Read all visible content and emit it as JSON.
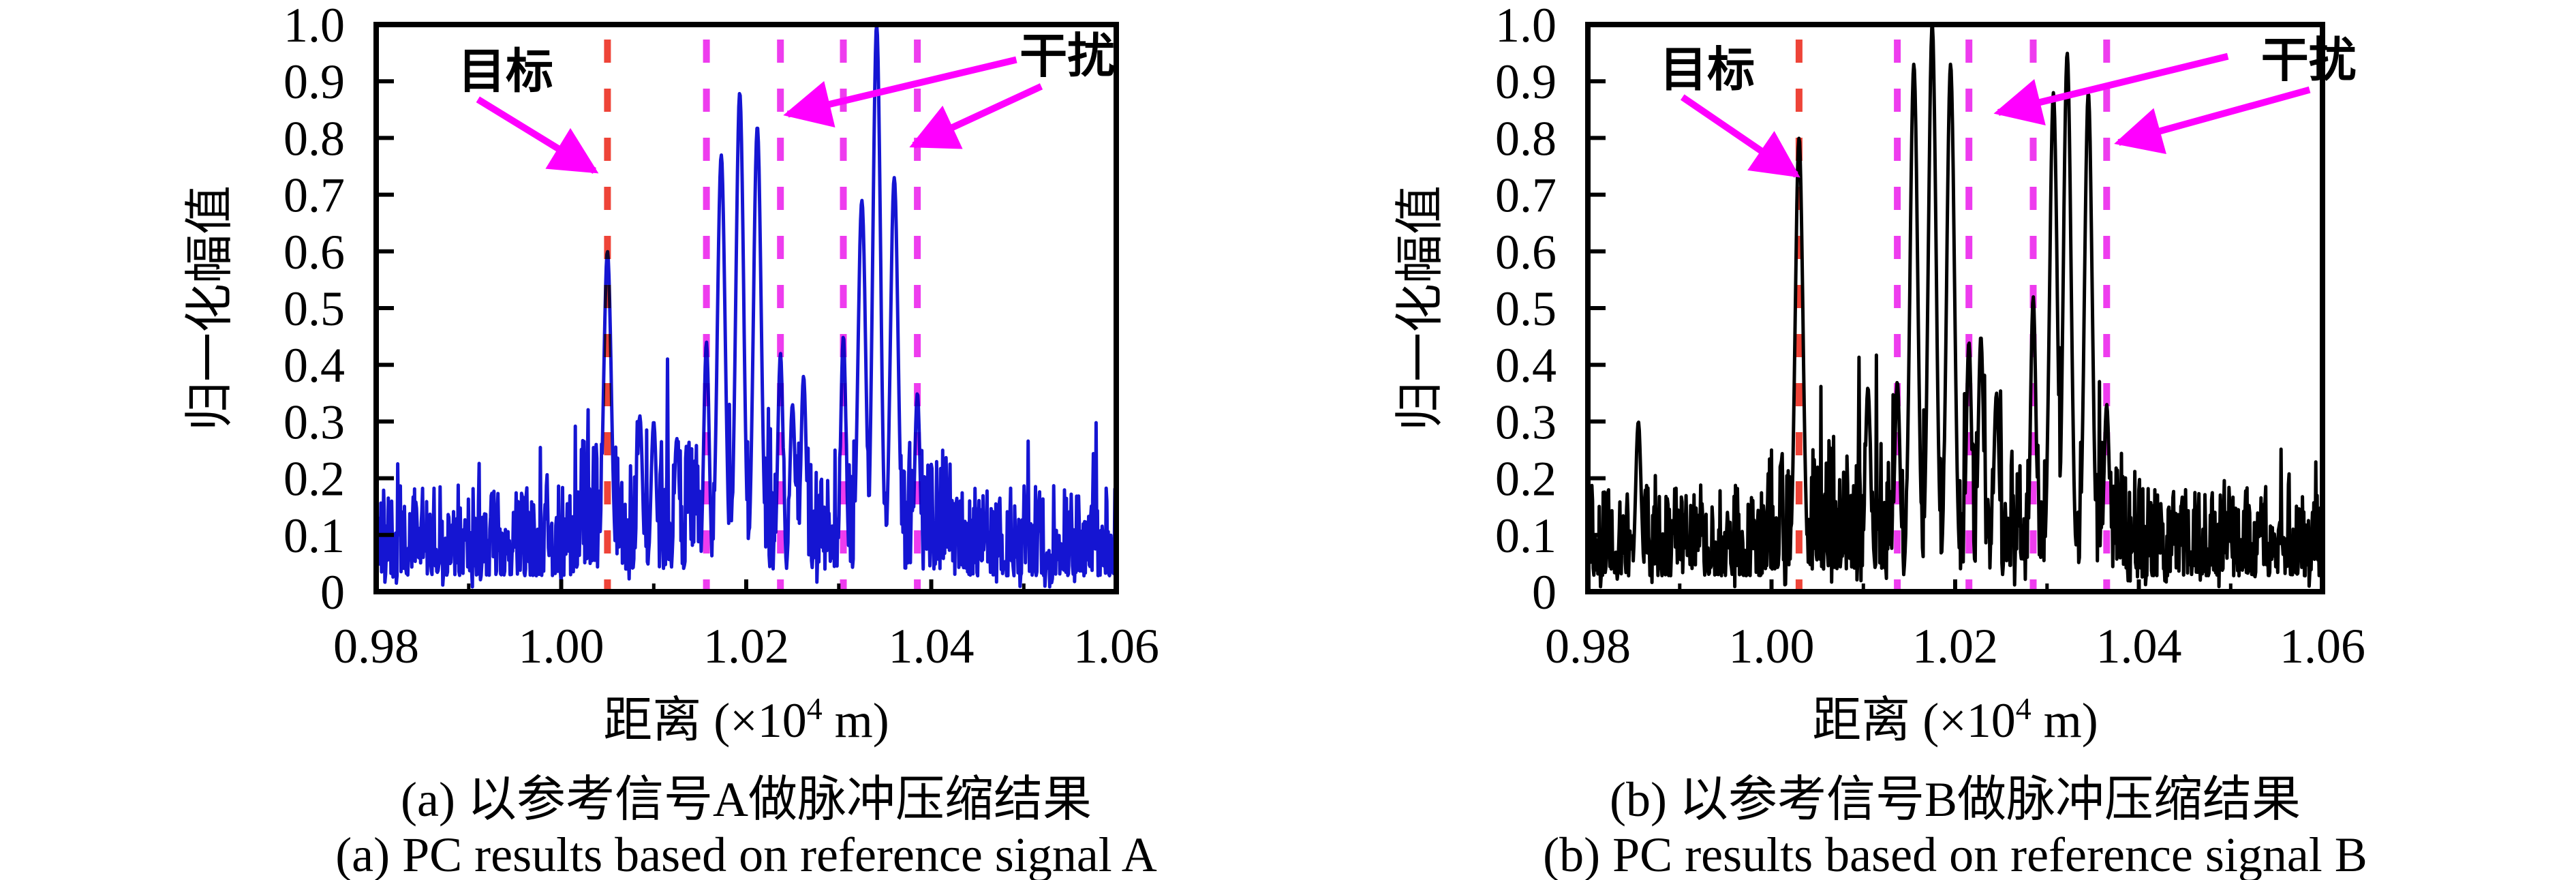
{
  "figure": {
    "background": "#ffffff",
    "panels": [
      {
        "id": "a",
        "ylabel": "归一化幅值",
        "xlabel_prefix": "距离 (×10",
        "xlabel_sup": "4",
        "xlabel_suffix": " m)",
        "caption_zh": "(a) 以参考信号A做脉冲压缩结果",
        "caption_en": "(a) PC results based on reference signal A"
      },
      {
        "id": "b",
        "ylabel": "归一化幅值",
        "xlabel_prefix": "距离 (×10",
        "xlabel_sup": "4",
        "xlabel_suffix": " m)",
        "caption_zh": "(b) 以参考信号B做脉冲压缩结果",
        "caption_en": "(b) PC results based on reference signal B"
      }
    ]
  },
  "chart_data": [
    {
      "type": "line",
      "title": "(a) 以参考信号A做脉冲压缩结果 / PC results based on reference signal A",
      "xlabel": "距离 (×10⁴ m)",
      "ylabel": "归一化幅值",
      "xlim": [
        0.98,
        1.06
      ],
      "ylim": [
        0,
        1.0
      ],
      "grid": false,
      "legend": "none",
      "x_ticks": [
        0.98,
        1.0,
        1.02,
        1.04,
        1.06
      ],
      "x_tick_labels": [
        "0.98",
        "1.00",
        "1.02",
        "1.04",
        "1.06"
      ],
      "x_minor_ticks": [
        0.99,
        1.01,
        1.03,
        1.05
      ],
      "y_ticks": [
        0,
        0.1,
        0.2,
        0.3,
        0.4,
        0.5,
        0.6,
        0.7,
        0.8,
        0.9,
        1.0
      ],
      "y_tick_labels": [
        "0",
        "0.1",
        "0.2",
        "0.3",
        "0.4",
        "0.5",
        "0.6",
        "0.7",
        "0.8",
        "0.9",
        "1.0"
      ],
      "line_color": "#1515d2",
      "target_line": {
        "x": 1.005,
        "color": "#ee4438",
        "style": "dashed",
        "label": "目标"
      },
      "interference_lines": {
        "x": [
          1.0157,
          1.0237,
          1.0305,
          1.0385
        ],
        "color": "#ee3cee",
        "style": "dashed",
        "label": "干扰"
      },
      "main_peaks": [
        [
          1.005,
          0.6
        ],
        [
          1.0085,
          0.31
        ],
        [
          1.01,
          0.3
        ],
        [
          1.0125,
          0.27
        ],
        [
          1.0157,
          0.44
        ],
        [
          1.0173,
          0.77
        ],
        [
          1.0193,
          0.88
        ],
        [
          1.0212,
          0.82
        ],
        [
          1.0237,
          0.42
        ],
        [
          1.025,
          0.33
        ],
        [
          1.0262,
          0.38
        ],
        [
          1.0305,
          0.45
        ],
        [
          1.0325,
          0.69
        ],
        [
          1.0341,
          1.0
        ],
        [
          1.036,
          0.73
        ],
        [
          1.0385,
          0.35
        ]
      ],
      "noise_floor": {
        "min": 0.01,
        "typical": 0.12,
        "max": 0.3
      },
      "noise_seed": 7,
      "annotations": {
        "target": {
          "label": "目标",
          "color": "#ff00ff",
          "text_pos": [
            0.994,
            0.92
          ],
          "arrows": [
            [
              [
                0.991,
                0.868
              ],
              [
                1.0036,
                0.742
              ]
            ]
          ]
        },
        "interference": {
          "label": "干扰",
          "color": "#ff00ff",
          "text_pos": [
            1.0547,
            0.947
          ],
          "arrows": [
            [
              [
                1.0492,
                0.938
              ],
              [
                1.0245,
                0.842
              ]
            ],
            [
              [
                1.0519,
                0.891
              ],
              [
                1.0381,
                0.787
              ]
            ]
          ]
        }
      }
    },
    {
      "type": "line",
      "title": "(b) 以参考信号B做脉冲压缩结果 / PC results based on reference signal B",
      "xlabel": "距离 (×10⁴ m)",
      "ylabel": "归一化幅值",
      "xlim": [
        0.98,
        1.06
      ],
      "ylim": [
        0,
        1.0
      ],
      "grid": false,
      "legend": "none",
      "x_ticks": [
        0.98,
        1.0,
        1.02,
        1.04,
        1.06
      ],
      "x_tick_labels": [
        "0.98",
        "1.00",
        "1.02",
        "1.04",
        "1.06"
      ],
      "x_minor_ticks": [
        0.99,
        1.01,
        1.03,
        1.05
      ],
      "y_ticks": [
        0,
        0.1,
        0.2,
        0.3,
        0.4,
        0.5,
        0.6,
        0.7,
        0.8,
        0.9,
        1.0
      ],
      "y_tick_labels": [
        "0",
        "0.1",
        "0.2",
        "0.3",
        "0.4",
        "0.5",
        "0.6",
        "0.7",
        "0.8",
        "0.9",
        "1.0"
      ],
      "line_color": "#000000",
      "target_line": {
        "x": 1.003,
        "color": "#ee4438",
        "style": "dashed",
        "label": "目标"
      },
      "interference_lines": {
        "x": [
          1.0137,
          1.0215,
          1.0285,
          1.0365
        ],
        "color": "#ee3cee",
        "style": "dashed",
        "label": "干扰"
      },
      "main_peaks": [
        [
          0.9855,
          0.3
        ],
        [
          1.003,
          0.8
        ],
        [
          1.0105,
          0.36
        ],
        [
          1.0137,
          0.37
        ],
        [
          1.0155,
          0.93
        ],
        [
          1.0175,
          1.0
        ],
        [
          1.0195,
          0.93
        ],
        [
          1.0215,
          0.44
        ],
        [
          1.0228,
          0.45
        ],
        [
          1.0245,
          0.35
        ],
        [
          1.0285,
          0.52
        ],
        [
          1.0307,
          0.88
        ],
        [
          1.0322,
          0.95
        ],
        [
          1.0345,
          0.88
        ],
        [
          1.0365,
          0.33
        ]
      ],
      "noise_floor": {
        "min": 0.01,
        "typical": 0.13,
        "max": 0.31
      },
      "noise_seed": 12,
      "annotations": {
        "target": {
          "label": "目标",
          "color": "#ff00ff",
          "text_pos": [
            0.993,
            0.923
          ],
          "arrows": [
            [
              [
                0.9903,
                0.872
              ],
              [
                1.0027,
                0.735
              ]
            ]
          ]
        },
        "interference": {
          "label": "干扰",
          "color": "#ff00ff",
          "text_pos": [
            1.0585,
            0.94
          ],
          "arrows": [
            [
              [
                1.0497,
                0.944
              ],
              [
                1.0247,
                0.845
              ]
            ],
            [
              [
                1.0586,
                0.885
              ],
              [
                1.0378,
                0.792
              ]
            ]
          ]
        }
      }
    }
  ]
}
